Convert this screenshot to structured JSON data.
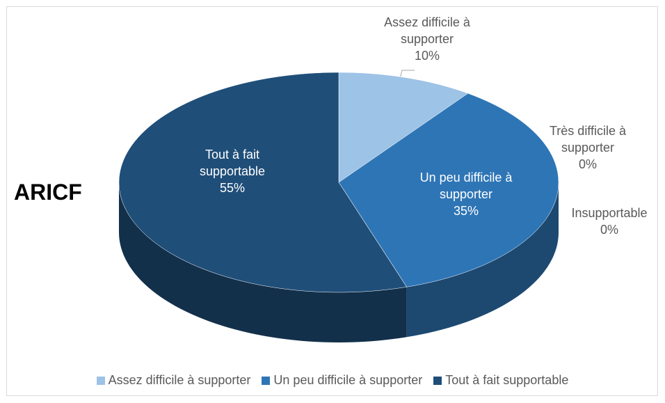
{
  "chart_data": {
    "type": "pie3d",
    "title": "ARICF",
    "categories": [
      "Assez difficile à supporter",
      "Un peu difficile à supporter",
      "Très difficile à supporter",
      "Insupportable",
      "Tout à fait supportable"
    ],
    "values": [
      10,
      35,
      0,
      0,
      55
    ],
    "value_labels": [
      "10%",
      "35%",
      "0%",
      "0%",
      "55%"
    ],
    "colors": [
      "#9dc3e6",
      "#2e75b6",
      "#a5a5a5",
      "#ffc000",
      "#1f4e79"
    ],
    "legend": true
  }
}
